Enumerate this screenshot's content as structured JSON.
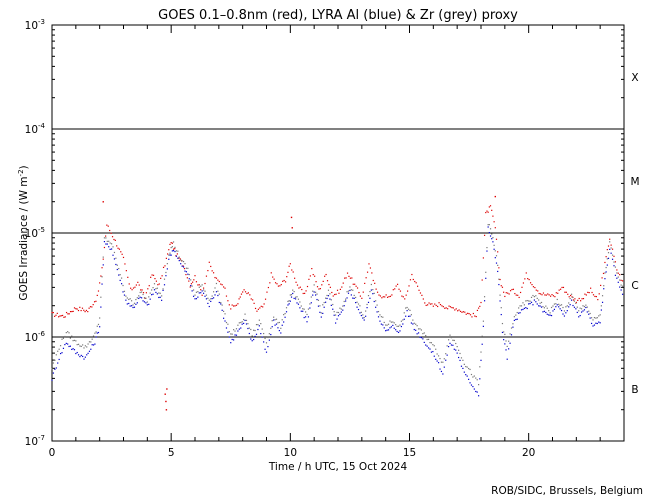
{
  "chart_data": {
    "type": "scatter",
    "title": "GOES 0.1–0.8nm (red), LYRA Al (blue) & Zr (grey) proxy",
    "xlabel": "Time / h UTC, 15 Oct 2024",
    "ylabel": "GOES Irradiance / (W m",
    "ylabel_exp": "-2",
    "ylabel_close": ")",
    "xlim": [
      0,
      24
    ],
    "ylim_exp": [
      -7,
      -3
    ],
    "y_scale": "log",
    "x_ticks": [
      "0",
      "5",
      "10",
      "15",
      "20"
    ],
    "x_tick_values": [
      0,
      5,
      10,
      15,
      20
    ],
    "y_ticks": [
      {
        "exp": -7,
        "base": "10",
        "sup": "-7"
      },
      {
        "exp": -6,
        "base": "10",
        "sup": "-6"
      },
      {
        "exp": -5,
        "base": "10",
        "sup": "-5"
      },
      {
        "exp": -4,
        "base": "10",
        "sup": "-4"
      },
      {
        "exp": -3,
        "base": "10",
        "sup": "-3"
      }
    ],
    "flare_thresholds": [
      -6,
      -5,
      -4
    ],
    "flare_classes": [
      {
        "label": "X",
        "exp": -3.5
      },
      {
        "label": "M",
        "exp": -4.5
      },
      {
        "label": "C",
        "exp": -5.5
      },
      {
        "label": "B",
        "exp": -6.5
      }
    ],
    "series": [
      {
        "name": "GOES 0.1-0.8nm",
        "color": "#dd0000",
        "x": [
          0.0,
          0.5,
          1.0,
          1.5,
          1.9,
          2.1,
          2.3,
          2.6,
          3.0,
          3.3,
          3.6,
          3.9,
          4.2,
          4.5,
          4.8,
          5.0,
          5.2,
          5.5,
          5.8,
          6.0,
          6.3,
          6.6,
          6.9,
          7.2,
          7.5,
          7.8,
          8.0,
          8.3,
          8.6,
          8.9,
          9.2,
          9.5,
          9.8,
          10.0,
          10.3,
          10.6,
          10.9,
          11.2,
          11.5,
          11.8,
          12.1,
          12.4,
          12.7,
          13.0,
          13.3,
          13.6,
          13.9,
          14.2,
          14.5,
          14.8,
          15.1,
          15.4,
          15.7,
          16.0,
          16.3,
          16.6,
          16.9,
          17.2,
          17.5,
          17.8,
          18.0,
          18.2,
          18.4,
          18.6,
          18.8,
          19.0,
          19.3,
          19.6,
          19.9,
          20.2,
          20.5,
          20.8,
          21.1,
          21.4,
          21.7,
          22.0,
          22.3,
          22.6,
          22.9,
          23.2,
          23.4,
          23.7,
          24.0
        ],
        "log_y": [
          -5.78,
          -5.8,
          -5.72,
          -5.75,
          -5.62,
          -5.35,
          -4.92,
          -5.05,
          -5.25,
          -5.55,
          -5.48,
          -5.62,
          -5.4,
          -5.5,
          -5.25,
          -5.08,
          -5.2,
          -5.3,
          -5.5,
          -5.42,
          -5.58,
          -5.3,
          -5.45,
          -5.5,
          -5.72,
          -5.68,
          -5.55,
          -5.6,
          -5.75,
          -5.7,
          -5.4,
          -5.52,
          -5.45,
          -5.3,
          -5.5,
          -5.6,
          -5.35,
          -5.55,
          -5.4,
          -5.6,
          -5.55,
          -5.38,
          -5.5,
          -5.62,
          -5.3,
          -5.55,
          -5.62,
          -5.6,
          -5.5,
          -5.65,
          -5.4,
          -5.55,
          -5.68,
          -5.7,
          -5.68,
          -5.72,
          -5.72,
          -5.75,
          -5.78,
          -5.8,
          -5.65,
          -4.82,
          -4.75,
          -4.95,
          -5.45,
          -5.6,
          -5.55,
          -5.6,
          -5.4,
          -5.5,
          -5.58,
          -5.6,
          -5.6,
          -5.52,
          -5.6,
          -5.65,
          -5.62,
          -5.55,
          -5.65,
          -5.3,
          -5.05,
          -5.35,
          -5.5
        ]
      },
      {
        "name": "LYRA Al proxy",
        "color": "#0000cc",
        "x": [
          0.0,
          0.3,
          0.6,
          1.0,
          1.4,
          1.8,
          2.0,
          2.2,
          2.5,
          2.8,
          3.1,
          3.4,
          3.7,
          4.0,
          4.3,
          4.6,
          4.9,
          5.1,
          5.4,
          5.7,
          6.0,
          6.3,
          6.6,
          6.9,
          7.2,
          7.5,
          7.8,
          8.1,
          8.4,
          8.7,
          9.0,
          9.3,
          9.6,
          9.9,
          10.1,
          10.4,
          10.7,
          11.0,
          11.3,
          11.6,
          11.9,
          12.2,
          12.5,
          12.8,
          13.1,
          13.4,
          13.7,
          14.0,
          14.3,
          14.6,
          14.9,
          15.2,
          15.5,
          15.8,
          16.1,
          16.4,
          16.7,
          17.0,
          17.3,
          17.6,
          17.9,
          18.1,
          18.3,
          18.5,
          18.7,
          18.9,
          19.1,
          19.4,
          19.7,
          20.0,
          20.3,
          20.6,
          20.9,
          21.2,
          21.5,
          21.8,
          22.1,
          22.4,
          22.7,
          23.0,
          23.2,
          23.4,
          23.7,
          24.0
        ],
        "log_y": [
          -6.4,
          -6.2,
          -6.05,
          -6.15,
          -6.2,
          -6.05,
          -5.9,
          -5.1,
          -5.15,
          -5.4,
          -5.65,
          -5.72,
          -5.62,
          -5.7,
          -5.55,
          -5.65,
          -5.25,
          -5.15,
          -5.3,
          -5.4,
          -5.65,
          -5.55,
          -5.7,
          -5.55,
          -5.8,
          -6.05,
          -5.95,
          -5.85,
          -6.05,
          -5.9,
          -6.15,
          -5.85,
          -5.95,
          -5.7,
          -5.6,
          -5.72,
          -5.85,
          -5.55,
          -5.8,
          -5.6,
          -5.85,
          -5.75,
          -5.55,
          -5.7,
          -5.85,
          -5.55,
          -5.8,
          -5.95,
          -5.9,
          -5.95,
          -5.75,
          -5.92,
          -6.0,
          -6.1,
          -6.2,
          -6.35,
          -6.05,
          -6.15,
          -6.35,
          -6.45,
          -6.55,
          -5.9,
          -4.95,
          -5.1,
          -5.35,
          -5.95,
          -6.2,
          -5.85,
          -5.75,
          -5.7,
          -5.65,
          -5.75,
          -5.8,
          -5.7,
          -5.8,
          -5.65,
          -5.8,
          -5.72,
          -5.9,
          -5.85,
          -5.45,
          -5.15,
          -5.45,
          -5.6
        ]
      },
      {
        "name": "LYRA Zr proxy",
        "color": "#777777",
        "x": [
          0.0,
          0.3,
          0.6,
          1.0,
          1.4,
          1.8,
          2.0,
          2.2,
          2.5,
          2.8,
          3.1,
          3.4,
          3.7,
          4.0,
          4.3,
          4.6,
          4.9,
          5.1,
          5.4,
          5.7,
          6.0,
          6.3,
          6.6,
          6.9,
          7.2,
          7.5,
          7.8,
          8.1,
          8.4,
          8.7,
          9.0,
          9.3,
          9.6,
          9.9,
          10.1,
          10.4,
          10.7,
          11.0,
          11.3,
          11.6,
          11.9,
          12.2,
          12.5,
          12.8,
          13.1,
          13.4,
          13.7,
          14.0,
          14.3,
          14.6,
          14.9,
          15.2,
          15.5,
          15.8,
          16.1,
          16.4,
          16.7,
          17.0,
          17.3,
          17.6,
          17.9,
          18.1,
          18.3,
          18.5,
          18.7,
          18.9,
          19.1,
          19.4,
          19.7,
          20.0,
          20.3,
          20.6,
          20.9,
          21.2,
          21.5,
          21.8,
          22.1,
          22.4,
          22.7,
          23.0,
          23.2,
          23.4,
          23.7,
          24.0
        ],
        "log_y": [
          -6.3,
          -6.1,
          -5.95,
          -6.05,
          -6.1,
          -5.98,
          -5.82,
          -5.05,
          -5.1,
          -5.35,
          -5.6,
          -5.68,
          -5.57,
          -5.65,
          -5.5,
          -5.6,
          -5.2,
          -5.1,
          -5.25,
          -5.35,
          -5.6,
          -5.5,
          -5.65,
          -5.5,
          -5.75,
          -5.98,
          -5.9,
          -5.8,
          -5.98,
          -5.84,
          -6.05,
          -5.8,
          -5.9,
          -5.66,
          -5.55,
          -5.68,
          -5.8,
          -5.5,
          -5.75,
          -5.55,
          -5.8,
          -5.7,
          -5.5,
          -5.66,
          -5.8,
          -5.5,
          -5.75,
          -5.88,
          -5.85,
          -5.9,
          -5.7,
          -5.86,
          -5.95,
          -6.02,
          -6.12,
          -6.25,
          -5.98,
          -6.08,
          -6.25,
          -6.35,
          -6.45,
          -5.85,
          -4.9,
          -5.05,
          -5.3,
          -5.88,
          -6.1,
          -5.8,
          -5.7,
          -5.65,
          -5.6,
          -5.7,
          -5.75,
          -5.65,
          -5.75,
          -5.6,
          -5.75,
          -5.68,
          -5.84,
          -5.8,
          -5.4,
          -5.1,
          -5.4,
          -5.55
        ]
      }
    ],
    "isolated_points": [
      {
        "x": 4.75,
        "log_y": -6.55,
        "color": "#dd0000"
      },
      {
        "x": 4.78,
        "log_y": -6.62,
        "color": "#dd0000"
      },
      {
        "x": 4.8,
        "log_y": -6.7,
        "color": "#dd0000"
      },
      {
        "x": 4.82,
        "log_y": -6.5,
        "color": "#dd0000"
      },
      {
        "x": 10.05,
        "log_y": -4.85,
        "color": "#dd0000"
      },
      {
        "x": 10.08,
        "log_y": -4.95,
        "color": "#dd0000"
      },
      {
        "x": 2.15,
        "log_y": -4.7,
        "color": "#dd0000"
      },
      {
        "x": 18.6,
        "log_y": -4.65,
        "color": "#dd0000"
      }
    ]
  },
  "footer": {
    "credit": "ROB/SIDC, Brussels, Belgium"
  }
}
